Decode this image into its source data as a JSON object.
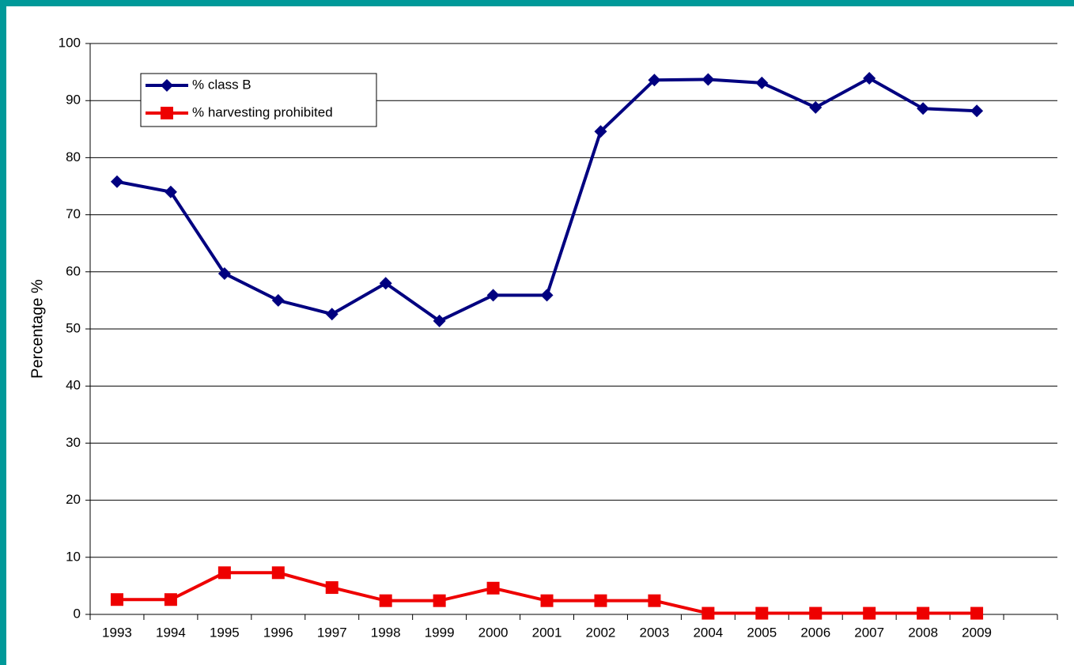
{
  "chart_data": {
    "type": "line",
    "y_label": "Percentage %",
    "categories": [
      "1993",
      "1994",
      "1995",
      "1996",
      "1997",
      "1998",
      "1999",
      "2000",
      "2001",
      "2002",
      "2003",
      "2004",
      "2005",
      "2006",
      "2007",
      "2008",
      "2009",
      null
    ],
    "series": [
      {
        "name": "% class B",
        "color": "#000080",
        "marker": "diamond",
        "values": [
          75.8,
          74.0,
          59.7,
          55.0,
          52.6,
          58.0,
          51.4,
          55.9,
          55.9,
          84.6,
          93.6,
          93.7,
          93.1,
          88.8,
          93.9,
          88.6,
          88.2,
          null
        ]
      },
      {
        "name": "% harvesting prohibited",
        "color": "#ee0000",
        "marker": "square",
        "values": [
          2.6,
          2.6,
          7.3,
          7.3,
          4.7,
          2.4,
          2.4,
          4.6,
          2.4,
          2.4,
          2.4,
          0.2,
          0.2,
          0.2,
          0.2,
          0.2,
          0.2,
          null
        ]
      }
    ],
    "ylim": [
      0,
      100
    ],
    "yticks": [
      0,
      10,
      20,
      30,
      40,
      50,
      60,
      70,
      80,
      90,
      100
    ],
    "grid": true
  }
}
